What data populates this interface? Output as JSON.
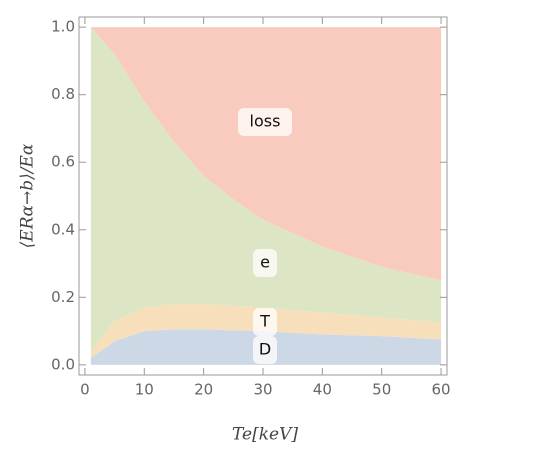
{
  "chart_data": {
    "type": "stacked-area",
    "x_label": "Te[keV]",
    "y_label": "⟨ERα→b⟩/Eα",
    "x": [
      1,
      5,
      10,
      15,
      20,
      25,
      30,
      40,
      50,
      60
    ],
    "series": [
      {
        "name": "D",
        "color": "#cdd8e6",
        "values": [
          0.02,
          0.07,
          0.1,
          0.105,
          0.105,
          0.102,
          0.1,
          0.09,
          0.085,
          0.075
        ]
      },
      {
        "name": "T",
        "color": "#f6dfba",
        "values": [
          0.02,
          0.06,
          0.07,
          0.075,
          0.075,
          0.073,
          0.07,
          0.065,
          0.055,
          0.05
        ]
      },
      {
        "name": "e",
        "color": "#dde6c4",
        "values": [
          0.96,
          0.79,
          0.61,
          0.48,
          0.38,
          0.315,
          0.26,
          0.195,
          0.15,
          0.125
        ]
      },
      {
        "name": "loss",
        "color": "#f9cbbf",
        "values": [
          0,
          0.08,
          0.22,
          0.34,
          0.44,
          0.51,
          0.57,
          0.65,
          0.71,
          0.75
        ]
      }
    ],
    "xlim": [
      -1,
      61
    ],
    "xticks": [
      0,
      10,
      20,
      30,
      40,
      50,
      60
    ],
    "ylim": [
      -0.03,
      1.03
    ],
    "yticks": [
      {
        "value": 0,
        "label": "0.0"
      },
      0.2,
      0.4,
      0.6,
      0.8,
      {
        "value": 1,
        "label": "1.0"
      }
    ]
  }
}
